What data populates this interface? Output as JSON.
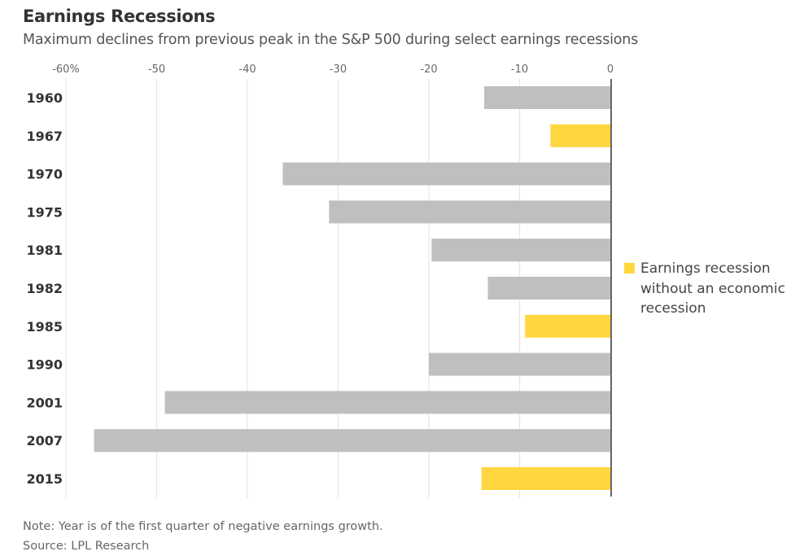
{
  "chart_data": {
    "type": "bar",
    "orientation": "horizontal",
    "title": "Earnings Recessions",
    "subtitle": "Maximum declines from previous peak in the S&P 500 during select earnings recessions",
    "xlabel": "",
    "ylabel": "",
    "xlim": [
      -60,
      0
    ],
    "x_ticks": [
      -60,
      -50,
      -40,
      -30,
      -20,
      -10,
      0
    ],
    "x_tick_labels": [
      "-60%",
      "-50",
      "-40",
      "-30",
      "-20",
      "-10",
      "0"
    ],
    "grid": true,
    "categories": [
      "1960",
      "1967",
      "1970",
      "1975",
      "1981",
      "1982",
      "1985",
      "1990",
      "2001",
      "2007",
      "2015"
    ],
    "values": [
      -13.9,
      -6.6,
      -36.1,
      -31.0,
      -19.7,
      -13.5,
      -9.4,
      -20.0,
      -49.1,
      -56.9,
      -14.2
    ],
    "highlight": [
      false,
      true,
      false,
      false,
      false,
      false,
      true,
      false,
      false,
      false,
      true
    ],
    "colors": {
      "default": "#bfbfbf",
      "highlight": "#ffd63f",
      "zero_line": "#666666",
      "grid": "#e6e6e6"
    },
    "legend": {
      "position": "right",
      "entries": [
        {
          "label": "Earnings recession without an economic recession",
          "color": "#ffd63f"
        }
      ]
    },
    "note": "Note: Year is of the first quarter of negative earnings growth.",
    "source": "Source: LPL Research"
  }
}
